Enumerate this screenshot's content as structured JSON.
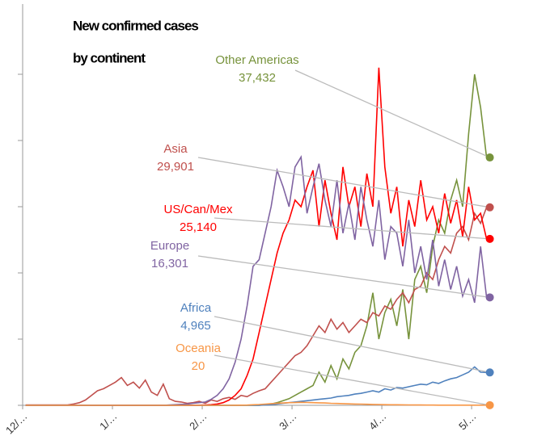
{
  "chart_data": {
    "type": "line",
    "title": [
      "New confirmed cases",
      "by continent"
    ],
    "x": [
      1,
      3,
      5,
      7,
      9,
      11,
      13,
      15,
      17,
      19,
      21,
      23,
      25,
      27,
      29,
      31,
      33,
      35,
      37,
      39,
      41,
      43,
      45,
      47,
      49,
      51,
      53,
      55,
      57,
      59,
      61,
      63,
      65,
      67,
      69,
      71,
      73,
      75,
      77,
      79,
      81,
      83,
      85,
      87,
      89,
      91,
      93,
      95,
      97,
      99,
      101,
      103,
      105,
      107,
      109,
      111,
      113,
      115,
      117,
      119,
      121,
      123,
      125,
      127,
      129,
      131,
      133,
      135,
      137,
      139,
      141,
      143,
      145,
      147,
      149,
      151,
      153,
      155
    ],
    "xlim": [
      0,
      157
    ],
    "xticks": [
      {
        "value": 0,
        "label": "12/…"
      },
      {
        "value": 30,
        "label": "1/…"
      },
      {
        "value": 60,
        "label": "2/…"
      },
      {
        "value": 90,
        "label": "3/…"
      },
      {
        "value": 120,
        "label": "4/…"
      },
      {
        "value": 150,
        "label": "5/…"
      }
    ],
    "ylim": [
      0,
      60000
    ],
    "yticks": [
      0,
      10000,
      20000,
      30000,
      40000,
      50000
    ],
    "series": [
      {
        "name": "Other Americas",
        "color": "#77933c",
        "value_label": "37,432",
        "values": [
          0,
          0,
          0,
          0,
          0,
          0,
          0,
          0,
          0,
          0,
          0,
          0,
          0,
          0,
          0,
          0,
          0,
          0,
          0,
          0,
          0,
          0,
          0,
          0,
          0,
          0,
          0,
          0,
          0,
          0,
          0,
          0,
          0,
          0,
          0,
          0,
          0,
          0,
          0,
          0,
          100,
          200,
          400,
          700,
          1000,
          1500,
          2000,
          2500,
          3000,
          5000,
          3500,
          6000,
          4000,
          7000,
          5500,
          8000,
          9000,
          12000,
          17000,
          10000,
          14000,
          16000,
          12000,
          17500,
          10000,
          19000,
          21000,
          17000,
          24000,
          28000,
          26000,
          31000,
          34000,
          30000,
          41000,
          50000,
          45000,
          37432
        ]
      },
      {
        "name": "Asia",
        "color": "#c0504d",
        "value_label": "29,901",
        "values": [
          50,
          50,
          50,
          50,
          50,
          50,
          50,
          50,
          200,
          400,
          800,
          1500,
          2200,
          2500,
          3000,
          3500,
          4200,
          3000,
          3500,
          2600,
          3800,
          2000,
          1500,
          3200,
          1000,
          600,
          500,
          300,
          400,
          600,
          300,
          800,
          600,
          1000,
          1200,
          900,
          1500,
          1300,
          1800,
          2200,
          2500,
          3500,
          4500,
          5500,
          6500,
          7500,
          8000,
          9000,
          10500,
          12000,
          11000,
          13000,
          11500,
          12500,
          11000,
          12000,
          13000,
          12500,
          14000,
          13500,
          15000,
          14500,
          16000,
          17000,
          15500,
          17500,
          18000,
          20000,
          19000,
          22000,
          24000,
          23000,
          26000,
          27000,
          25000,
          29000,
          27500,
          29901
        ]
      },
      {
        "name": "US/Can/Mex",
        "color": "#ff0000",
        "value_label": "25,140",
        "values": [
          0,
          0,
          0,
          0,
          0,
          0,
          0,
          0,
          0,
          0,
          0,
          0,
          0,
          0,
          0,
          0,
          0,
          0,
          0,
          0,
          0,
          0,
          0,
          0,
          0,
          0,
          0,
          0,
          10,
          20,
          50,
          100,
          200,
          400,
          800,
          1500,
          2500,
          4500,
          7000,
          11000,
          15000,
          19000,
          23000,
          26000,
          28000,
          31000,
          30000,
          33000,
          35500,
          27000,
          34000,
          29000,
          25000,
          36000,
          30000,
          33000,
          27000,
          35000,
          30000,
          51000,
          36000,
          29000,
          33000,
          24000,
          31000,
          27000,
          34000,
          28000,
          30000,
          26000,
          32000,
          27500,
          31000,
          25500,
          33000,
          28000,
          29000,
          25140
        ]
      },
      {
        "name": "Europe",
        "color": "#8064a2",
        "value_label": "16,301",
        "values": [
          0,
          0,
          0,
          0,
          0,
          0,
          0,
          0,
          0,
          0,
          0,
          0,
          0,
          0,
          0,
          0,
          0,
          0,
          0,
          0,
          0,
          0,
          0,
          0,
          50,
          100,
          150,
          200,
          300,
          400,
          500,
          900,
          1500,
          2500,
          4000,
          6500,
          10000,
          15000,
          21000,
          22000,
          26000,
          30000,
          35500,
          33000,
          30000,
          36000,
          37500,
          29000,
          33000,
          36500,
          31000,
          27000,
          34000,
          26000,
          30500,
          25000,
          33000,
          28000,
          24000,
          31000,
          22000,
          27000,
          26000,
          21000,
          28000,
          20000,
          24000,
          19000,
          25000,
          18000,
          22000,
          17500,
          21000,
          16500,
          19000,
          15500,
          24000,
          16301
        ]
      },
      {
        "name": "Africa",
        "color": "#4f81bd",
        "value_label": "4,965",
        "values": [
          0,
          0,
          0,
          0,
          0,
          0,
          0,
          0,
          0,
          0,
          0,
          0,
          0,
          0,
          0,
          0,
          0,
          0,
          0,
          0,
          0,
          0,
          0,
          0,
          0,
          0,
          0,
          0,
          0,
          0,
          0,
          0,
          0,
          0,
          0,
          0,
          0,
          0,
          0,
          0,
          50,
          100,
          200,
          300,
          400,
          500,
          600,
          700,
          800,
          900,
          1000,
          1100,
          1300,
          1400,
          1500,
          1700,
          1800,
          2000,
          2200,
          2000,
          2500,
          2300,
          2700,
          2600,
          2800,
          3000,
          3200,
          3100,
          3500,
          3300,
          3700,
          4000,
          4200,
          4600,
          5000,
          5800,
          5000,
          4965
        ]
      },
      {
        "name": "Oceania",
        "color": "#f79646",
        "value_label": "20",
        "values": [
          0,
          0,
          0,
          0,
          0,
          0,
          0,
          0,
          0,
          0,
          0,
          0,
          0,
          0,
          0,
          0,
          0,
          0,
          0,
          0,
          0,
          0,
          0,
          0,
          0,
          0,
          0,
          0,
          0,
          0,
          0,
          0,
          0,
          0,
          0,
          10,
          20,
          40,
          80,
          120,
          180,
          250,
          300,
          350,
          400,
          420,
          450,
          430,
          400,
          380,
          350,
          300,
          280,
          250,
          220,
          200,
          180,
          160,
          140,
          120,
          100,
          90,
          80,
          70,
          60,
          50,
          45,
          40,
          35,
          30,
          30,
          25,
          25,
          20,
          20,
          20,
          20,
          20
        ]
      }
    ]
  }
}
